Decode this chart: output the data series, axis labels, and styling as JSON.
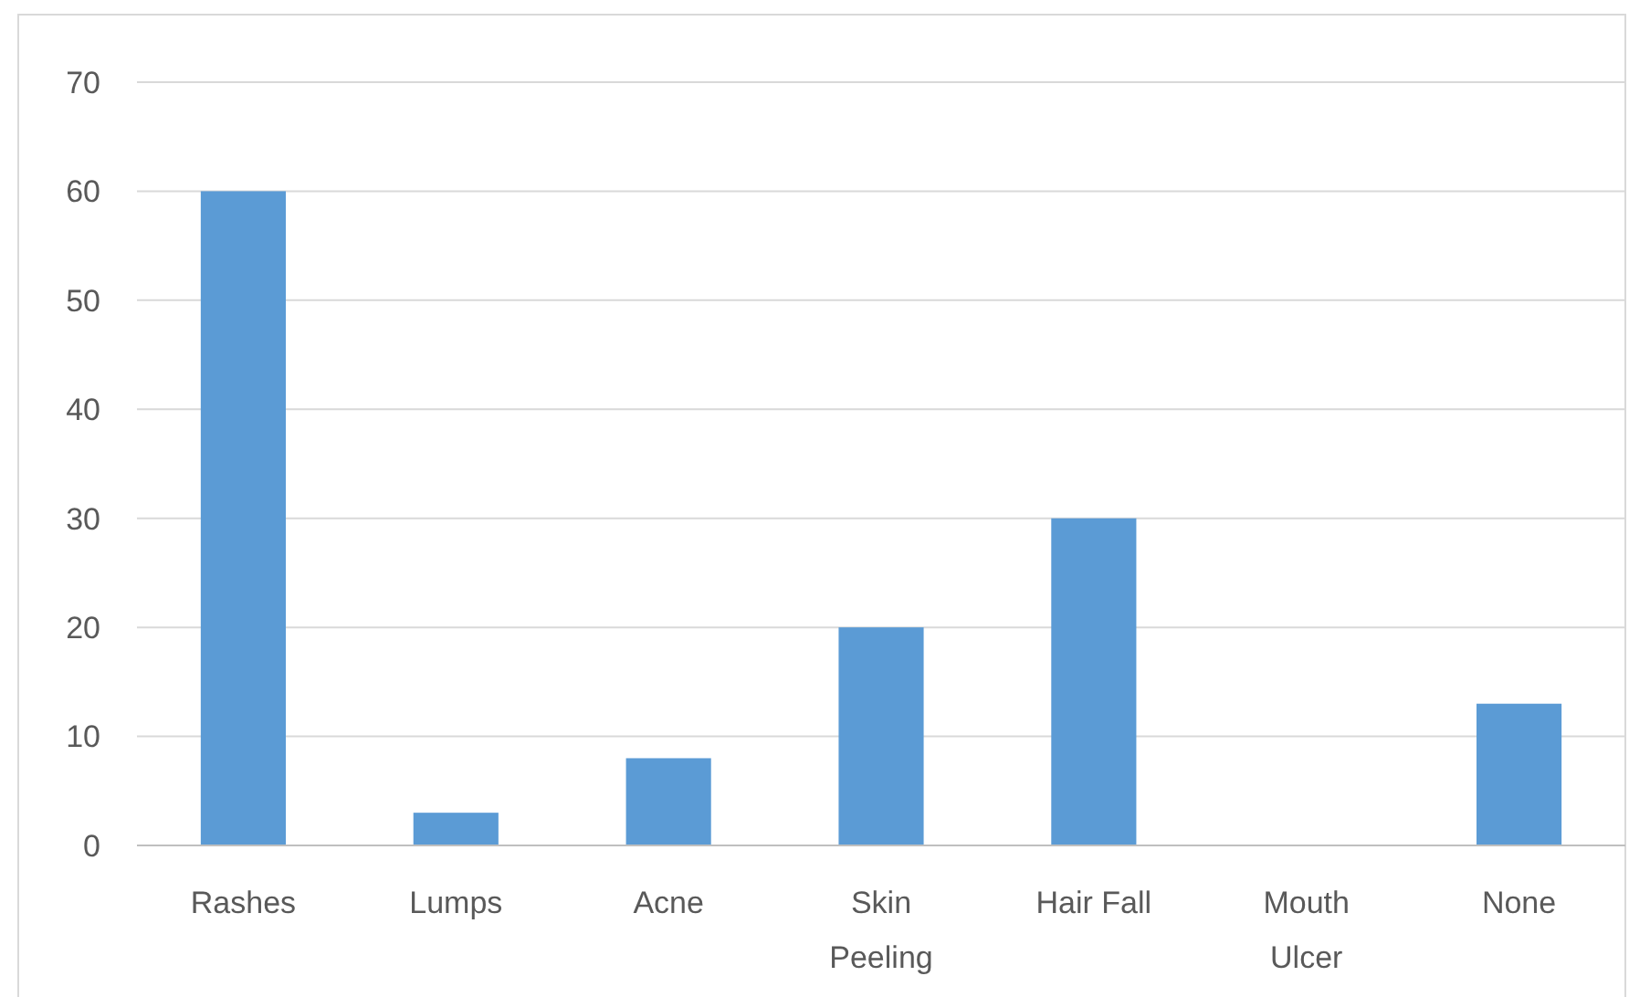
{
  "chart_data": {
    "type": "bar",
    "categories": [
      "Rashes",
      "Lumps",
      "Acne",
      "Skin Peeling",
      "Hair Fall",
      "Mouth Ulcer",
      "None"
    ],
    "values": [
      60,
      3,
      8,
      20,
      30,
      0,
      13
    ],
    "color": "#5b9bd5",
    "ylim": [
      0,
      70
    ],
    "yticks": [
      0,
      10,
      20,
      30,
      40,
      50,
      60,
      70
    ],
    "grid": "y"
  }
}
